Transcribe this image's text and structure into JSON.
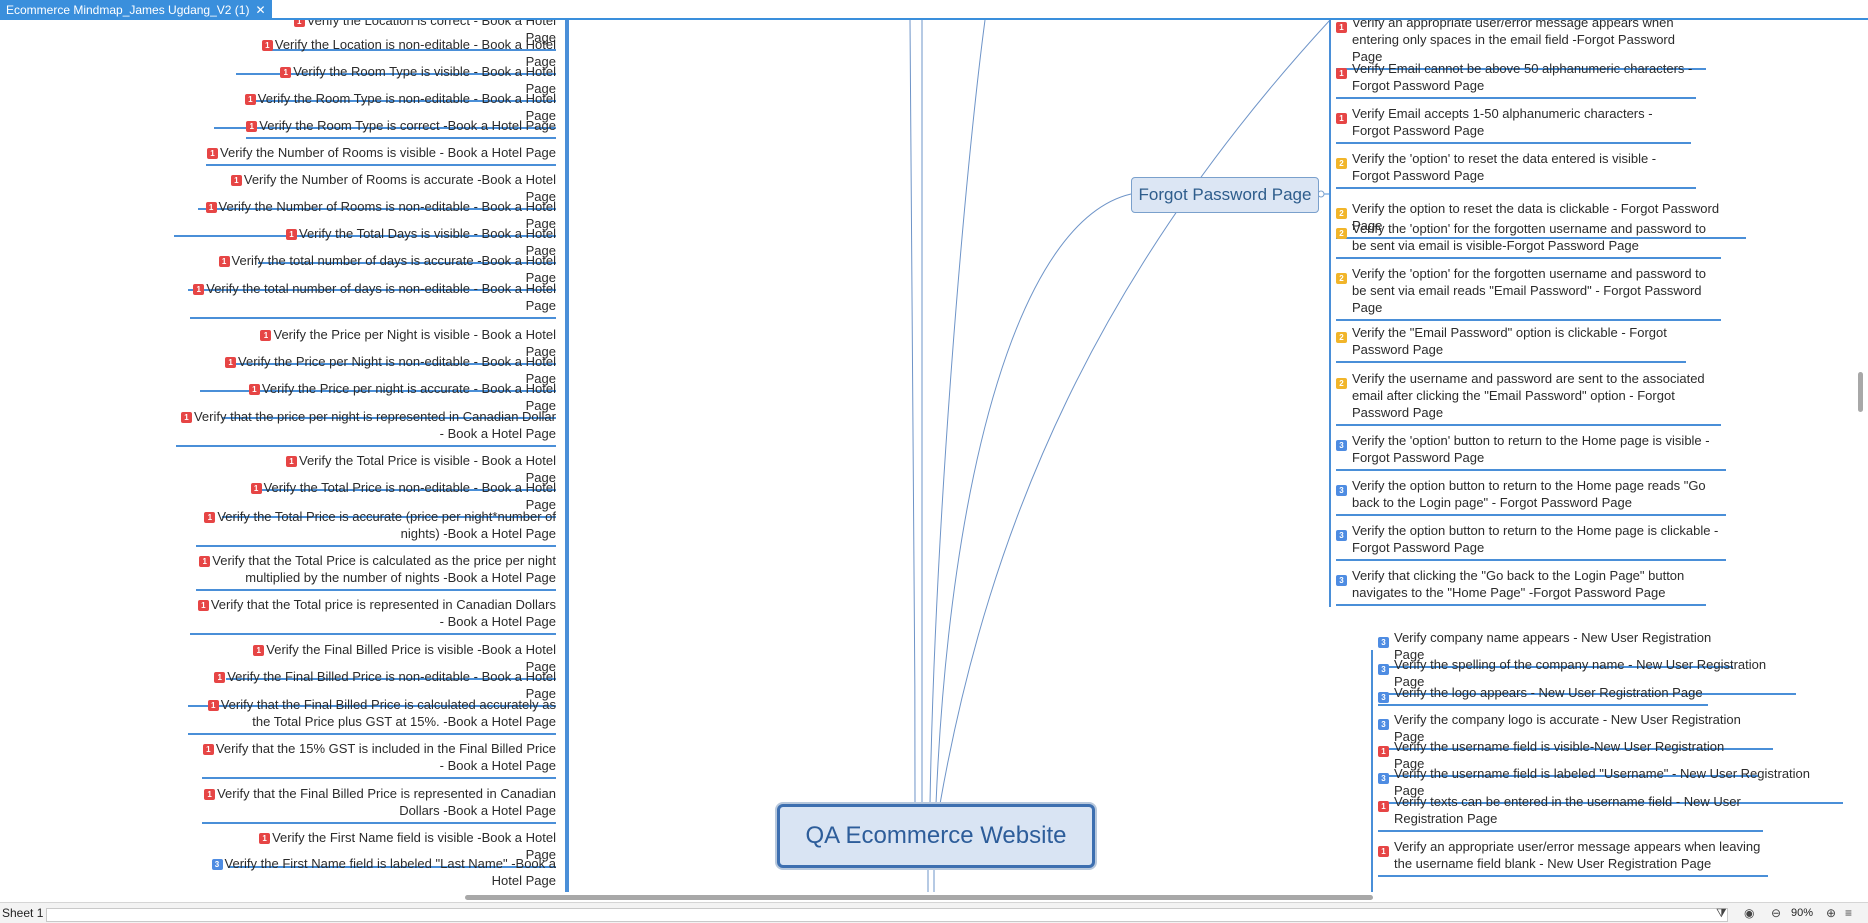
{
  "tab": {
    "title": "Ecommerce Mindmap_James Ugdang_V2 (1)",
    "close": "✕"
  },
  "central": "QA Ecommerce Website",
  "forgot_topic": "Forgot Password Page",
  "left_items": [
    {
      "p": "1",
      "text": "Verify the Location is correct - Book a Hotel Page"
    },
    {
      "p": "1",
      "text": "Verify the Location is non-editable - Book a Hotel Page"
    },
    {
      "p": "1",
      "text": "Verify the Room Type is visible - Book a Hotel Page"
    },
    {
      "p": "1",
      "text": "Verify the Room Type is non-editable - Book a Hotel Page"
    },
    {
      "p": "1",
      "text": "Verify the Room Type is correct -Book a Hotel Page"
    },
    {
      "p": "1",
      "text": "Verify the Number of Rooms is visible - Book a Hotel Page"
    },
    {
      "p": "1",
      "text": "Verify the Number of Rooms is accurate -Book a Hotel Page"
    },
    {
      "p": "1",
      "text": "Verify the Number of Rooms is non-editable - Book a Hotel Page"
    },
    {
      "p": "1",
      "text": "Verify the Total Days is visible - Book a Hotel Page"
    },
    {
      "p": "1",
      "text": "Verify the total number of days is accurate -Book a Hotel Page"
    },
    {
      "p": "1",
      "text": "Verify the total number of days is non-editable - Book a Hotel Page"
    },
    {
      "p": "1",
      "text": "Verify the Price per Night is visible - Book a Hotel Page"
    },
    {
      "p": "1",
      "text": "Verify the Price per Night is non-editable - Book a Hotel Page"
    },
    {
      "p": "1",
      "text": "Verify the Price per night is accurate - Book a Hotel Page"
    },
    {
      "p": "1",
      "text": "Verify that the price per night is represented in Canadian Dollar - Book a Hotel Page"
    },
    {
      "p": "1",
      "text": "Verify the Total Price is visible - Book a Hotel Page"
    },
    {
      "p": "1",
      "text": "Verify the Total Price is non-editable - Book a Hotel Page"
    },
    {
      "p": "1",
      "text": "Verify the Total Price is accurate (price per night*number of nights) -Book a Hotel Page"
    },
    {
      "p": "1",
      "text": "Verify that the Total Price is calculated as the price per night multiplied by the number of nights -Book a Hotel Page"
    },
    {
      "p": "1",
      "text": "Verify that the Total price is represented in Canadian Dollars - Book a Hotel Page"
    },
    {
      "p": "1",
      "text": "Verify the Final Billed Price is visible -Book a Hotel Page"
    },
    {
      "p": "1",
      "text": "Verify the Final Billed Price is non-editable - Book a Hotel Page"
    },
    {
      "p": "1",
      "text": "Verify that the Final Billed Price is calculated accurately as the Total Price plus GST at 15%.  -Book a Hotel Page"
    },
    {
      "p": "1",
      "text": "Verify that the 15% GST is included in the Final Billed Price - Book a Hotel Page"
    },
    {
      "p": "1",
      "text": "Verify that the Final Billed Price is represented in Canadian Dollars -Book a Hotel Page"
    },
    {
      "p": "1",
      "text": "Verify the First Name field is visible -Book a Hotel Page"
    },
    {
      "p": "3",
      "text": "Verify the First Name field is labeled \"Last Name\" -Book a Hotel Page"
    }
  ],
  "forgot_items": [
    {
      "p": "1",
      "text": "Verify an appropriate user/error message appears when entering only spaces in the email field -Forgot Password Page"
    },
    {
      "p": "1",
      "text": "Verify Email cannot be above 50 alphanumeric characters - Forgot Password Page"
    },
    {
      "p": "1",
      "text": "Verify Email accepts 1-50 alphanumeric characters - Forgot Password Page"
    },
    {
      "p": "2",
      "text": "Verify the 'option' to reset the data entered is visible - Forgot Password Page"
    },
    {
      "p": "2",
      "text": "Verify the option to reset the data is clickable - Forgot Password Page"
    },
    {
      "p": "2",
      "text": "Verify the 'option' for the forgotten username and password to be sent via email is visible-Forgot Password Page"
    },
    {
      "p": "2",
      "text": "Verify the 'option' for the forgotten username and password to be sent via email reads \"Email Password\" - Forgot Password Page"
    },
    {
      "p": "2",
      "text": "Verify the \"Email Password\" option is clickable - Forgot Password Page"
    },
    {
      "p": "2",
      "text": "Verify the username and password are sent to the associated email after clicking the \"Email Password\" option - Forgot Password Page"
    },
    {
      "p": "3",
      "text": "Verify the 'option' button to return to the Home page is visible  - Forgot Password Page"
    },
    {
      "p": "3",
      "text": "Verify the option button to return to the Home page reads \"Go back to the Login page\" - Forgot Password Page"
    },
    {
      "p": "3",
      "text": "Verify the option button to return to the Home page is clickable -Forgot Password Page"
    },
    {
      "p": "3",
      "text": "Verify that clicking the \"Go back to the Login Page\" button navigates to the \"Home Page\" -Forgot Password Page"
    }
  ],
  "registration_items": [
    {
      "p": "3",
      "text": "Verify company name appears - New User Registration Page"
    },
    {
      "p": "3",
      "text": "Verify the spelling of the company name - New User Registration Page"
    },
    {
      "p": "3",
      "text": "Verify the logo appears - New User Registration Page"
    },
    {
      "p": "3",
      "text": "Verify the company logo is accurate - New User Registration Page"
    },
    {
      "p": "1",
      "text": "Verify the username field is visible-New User Registration Page"
    },
    {
      "p": "3",
      "text": "Verify the username field is labeled \"Username\" - New User Registration Page"
    },
    {
      "p": "1",
      "text": "Verify texts can be entered in the username field - New User Registration Page"
    },
    {
      "p": "1",
      "text": "Verify an appropriate user/error message appears when leaving the username field blank - New User Registration Page"
    }
  ],
  "status": {
    "sheet": "Sheet 1",
    "zoom": "90%",
    "icons": [
      "filter-icon",
      "eye-icon",
      "zoom-out-icon",
      "zoom-in-icon",
      "menu-icon"
    ]
  }
}
